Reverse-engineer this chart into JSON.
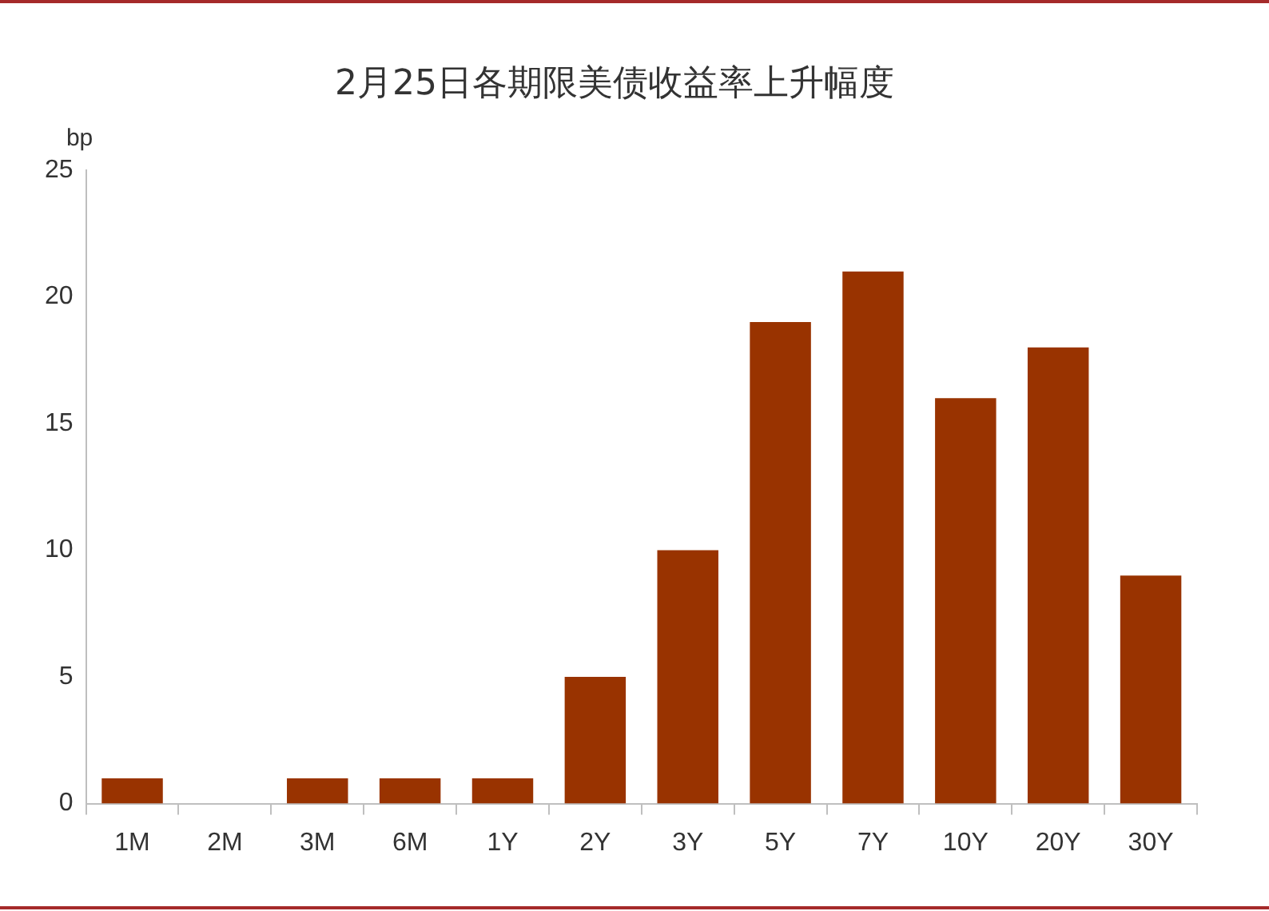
{
  "chart_data": {
    "type": "bar",
    "title": "2月25日各期限美债收益率上升幅度",
    "ylabel": "bp",
    "categories": [
      "1M",
      "2M",
      "3M",
      "6M",
      "1Y",
      "2Y",
      "3Y",
      "5Y",
      "7Y",
      "10Y",
      "20Y",
      "30Y"
    ],
    "values": [
      1,
      0,
      1,
      1,
      1,
      5,
      10,
      19,
      21,
      16,
      18,
      9
    ],
    "color": "#993300",
    "ylim": [
      0,
      25
    ],
    "yticks": [
      0,
      5,
      10,
      15,
      20,
      25
    ],
    "legend": false
  }
}
